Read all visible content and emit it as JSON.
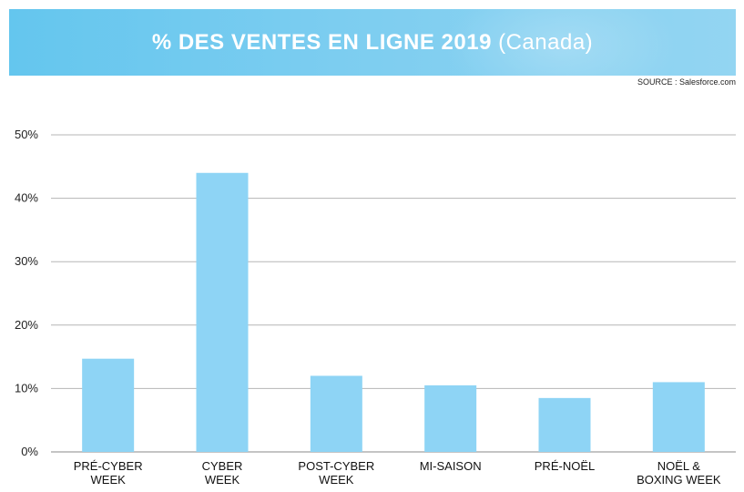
{
  "header": {
    "title_main": "% DES VENTES EN LIGNE 2019",
    "title_sub": "(Canada)"
  },
  "source": "SOURCE : Salesforce.com",
  "chart_data": {
    "type": "bar",
    "categories": [
      [
        "PRÉ-CYBER",
        "WEEK"
      ],
      [
        "CYBER",
        "WEEK"
      ],
      [
        "POST-CYBER",
        "WEEK"
      ],
      [
        "MI-SAISON"
      ],
      [
        "PRÉ-NOËL"
      ],
      [
        "NOËL &",
        "BOXING WEEK"
      ]
    ],
    "values": [
      14.7,
      44.0,
      12.0,
      10.5,
      8.5,
      11.0
    ],
    "ylim": [
      0,
      50
    ],
    "yticks": [
      "0%",
      "10%",
      "20%",
      "30%",
      "40%",
      "50%"
    ],
    "grid": true,
    "bar_color": "#8ed4f5",
    "grid_color": "#b5b5b5"
  }
}
